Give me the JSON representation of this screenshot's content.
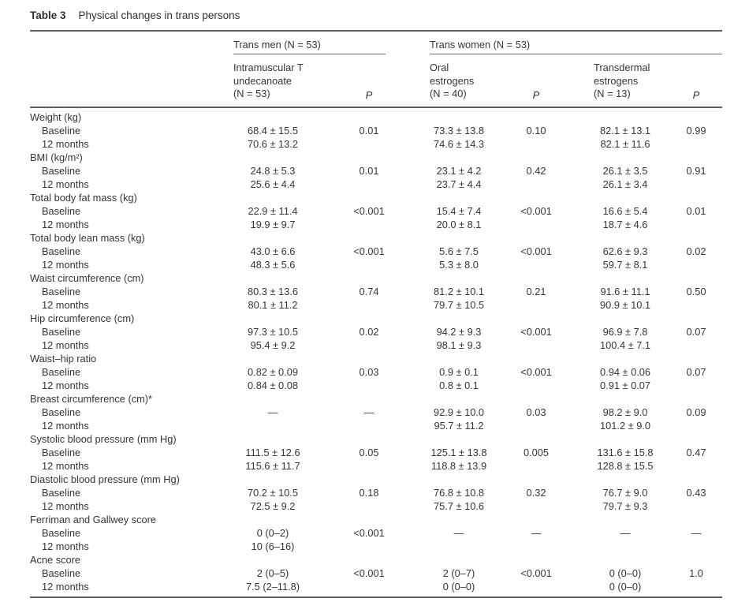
{
  "caption": {
    "label": "Table 3",
    "title": "Physical changes in trans persons"
  },
  "header": {
    "group_men": "Trans men (N = 53)",
    "group_women": "Trans women (N = 53)",
    "col_intramuscular": "Intramuscular T\nundecanoate\n(N = 53)",
    "col_oral": "Oral\nestrogens\n(N = 40)",
    "col_transdermal": "Transdermal\nestrogens\n(N = 13)",
    "p_label": "P"
  },
  "colors": {
    "text": "#333538",
    "rule": "#5d5f62",
    "background": "#ffffff"
  },
  "chart_data": {
    "type": "table",
    "title": "Table 3 Physical changes in trans persons",
    "column_groups": [
      "Trans men (N = 53)",
      "Trans women (N = 53)"
    ],
    "columns": [
      "Intramuscular T undecanoate (N = 53)",
      "P",
      "Oral estrogens (N = 40)",
      "P",
      "Transdermal estrogens (N = 13)",
      "P"
    ]
  },
  "sections": [
    {
      "name": "Weight (kg)",
      "rows": [
        {
          "label": "Baseline",
          "cells": [
            "68.4 ± 15.5",
            "0.01",
            "73.3 ± 13.8",
            "0.10",
            "82.1 ± 13.1",
            "0.99"
          ]
        },
        {
          "label": "12 months",
          "cells": [
            "70.6 ± 13.2",
            "",
            "74.6 ± 14.3",
            "",
            "82.1 ± 11.6",
            ""
          ]
        }
      ]
    },
    {
      "name": "BMI (kg/m²)",
      "rows": [
        {
          "label": "Baseline",
          "cells": [
            "24.8 ± 5.3",
            "0.01",
            "23.1 ± 4.2",
            "0.42",
            "26.1 ± 3.5",
            "0.91"
          ]
        },
        {
          "label": "12 months",
          "cells": [
            "25.6 ± 4.4",
            "",
            "23.7 ± 4.4",
            "",
            "26.1 ± 3.4",
            ""
          ]
        }
      ]
    },
    {
      "name": "Total body fat mass (kg)",
      "rows": [
        {
          "label": "Baseline",
          "cells": [
            "22.9 ± 11.4",
            "<0.001",
            "15.4 ± 7.4",
            "<0.001",
            "16.6 ± 5.4",
            "0.01"
          ]
        },
        {
          "label": "12 months",
          "cells": [
            "19.9 ± 9.7",
            "",
            "20.0 ± 8.1",
            "",
            "18.7 ± 4.6",
            ""
          ]
        }
      ]
    },
    {
      "name": "Total body lean mass (kg)",
      "rows": [
        {
          "label": "Baseline",
          "cells": [
            "43.0 ± 6.6",
            "<0.001",
            "5.6 ± 7.5",
            "<0.001",
            "62.6 ± 9.3",
            "0.02"
          ]
        },
        {
          "label": "12 months",
          "cells": [
            "48.3 ± 5.6",
            "",
            "5.3 ± 8.0",
            "",
            "59.7 ± 8.1",
            ""
          ]
        }
      ]
    },
    {
      "name": "Waist circumference (cm)",
      "rows": [
        {
          "label": "Baseline",
          "cells": [
            "80.3 ± 13.6",
            "0.74",
            "81.2 ± 10.1",
            "0.21",
            "91.6 ± 11.1",
            "0.50"
          ]
        },
        {
          "label": "12 months",
          "cells": [
            "80.1 ± 11.2",
            "",
            "79.7 ± 10.5",
            "",
            "90.9 ± 10.1",
            ""
          ]
        }
      ]
    },
    {
      "name": "Hip circumference (cm)",
      "rows": [
        {
          "label": "Baseline",
          "cells": [
            "97.3 ± 10.5",
            "0.02",
            "94.2 ± 9.3",
            "<0.001",
            "96.9 ± 7.8",
            "0.07"
          ]
        },
        {
          "label": "12 months",
          "cells": [
            "95.4 ± 9.2",
            "",
            "98.1 ± 9.3",
            "",
            "100.4 ± 7.1",
            ""
          ]
        }
      ]
    },
    {
      "name": "Waist–hip ratio",
      "rows": [
        {
          "label": "Baseline",
          "cells": [
            "0.82 ± 0.09",
            "0.03",
            "0.9 ± 0.1",
            "<0.001",
            "0.94 ± 0.06",
            "0.07"
          ]
        },
        {
          "label": "12 months",
          "cells": [
            "0.84 ± 0.08",
            "",
            "0.8 ± 0.1",
            "",
            "0.91 ± 0.07",
            ""
          ]
        }
      ]
    },
    {
      "name": "Breast circumference (cm)*",
      "rows": [
        {
          "label": "Baseline",
          "cells": [
            "—",
            "—",
            "92.9 ± 10.0",
            "0.03",
            "98.2 ± 9.0",
            "0.09"
          ]
        },
        {
          "label": "12 months",
          "cells": [
            "",
            "",
            "95.7 ± 11.2",
            "",
            "101.2 ± 9.0",
            ""
          ]
        }
      ]
    },
    {
      "name": "Systolic blood pressure (mm Hg)",
      "rows": [
        {
          "label": "Baseline",
          "cells": [
            "111.5 ± 12.6",
            "0.05",
            "125.1 ± 13.8",
            "0.005",
            "131.6 ± 15.8",
            "0.47"
          ]
        },
        {
          "label": "12 months",
          "cells": [
            "115.6 ± 11.7",
            "",
            "118.8 ± 13.9",
            "",
            "128.8 ± 15.5",
            ""
          ]
        }
      ]
    },
    {
      "name": "Diastolic blood pressure (mm Hg)",
      "rows": [
        {
          "label": "Baseline",
          "cells": [
            "70.2 ± 10.5",
            "0.18",
            "76.8 ± 10.8",
            "0.32",
            "76.7 ± 9.0",
            "0.43"
          ]
        },
        {
          "label": "12 months",
          "cells": [
            "72.5 ± 9.2",
            "",
            "75.7 ± 10.6",
            "",
            "79.7 ± 9.3",
            ""
          ]
        }
      ]
    },
    {
      "name": "Ferriman and Gallwey score",
      "rows": [
        {
          "label": "Baseline",
          "cells": [
            "0 (0–2)",
            "<0.001",
            "—",
            "—",
            "—",
            "—"
          ]
        },
        {
          "label": "12 months",
          "cells": [
            "10 (6–16)",
            "",
            "",
            "",
            "",
            ""
          ]
        }
      ]
    },
    {
      "name": "Acne score",
      "rows": [
        {
          "label": "Baseline",
          "cells": [
            "2 (0–5)",
            "<0.001",
            "2 (0–7)",
            "<0.001",
            "0 (0–0)",
            "1.0"
          ]
        },
        {
          "label": "12 months",
          "cells": [
            "7.5 (2–11.8)",
            "",
            "0 (0–0)",
            "",
            "0 (0–0)",
            ""
          ]
        }
      ]
    }
  ]
}
